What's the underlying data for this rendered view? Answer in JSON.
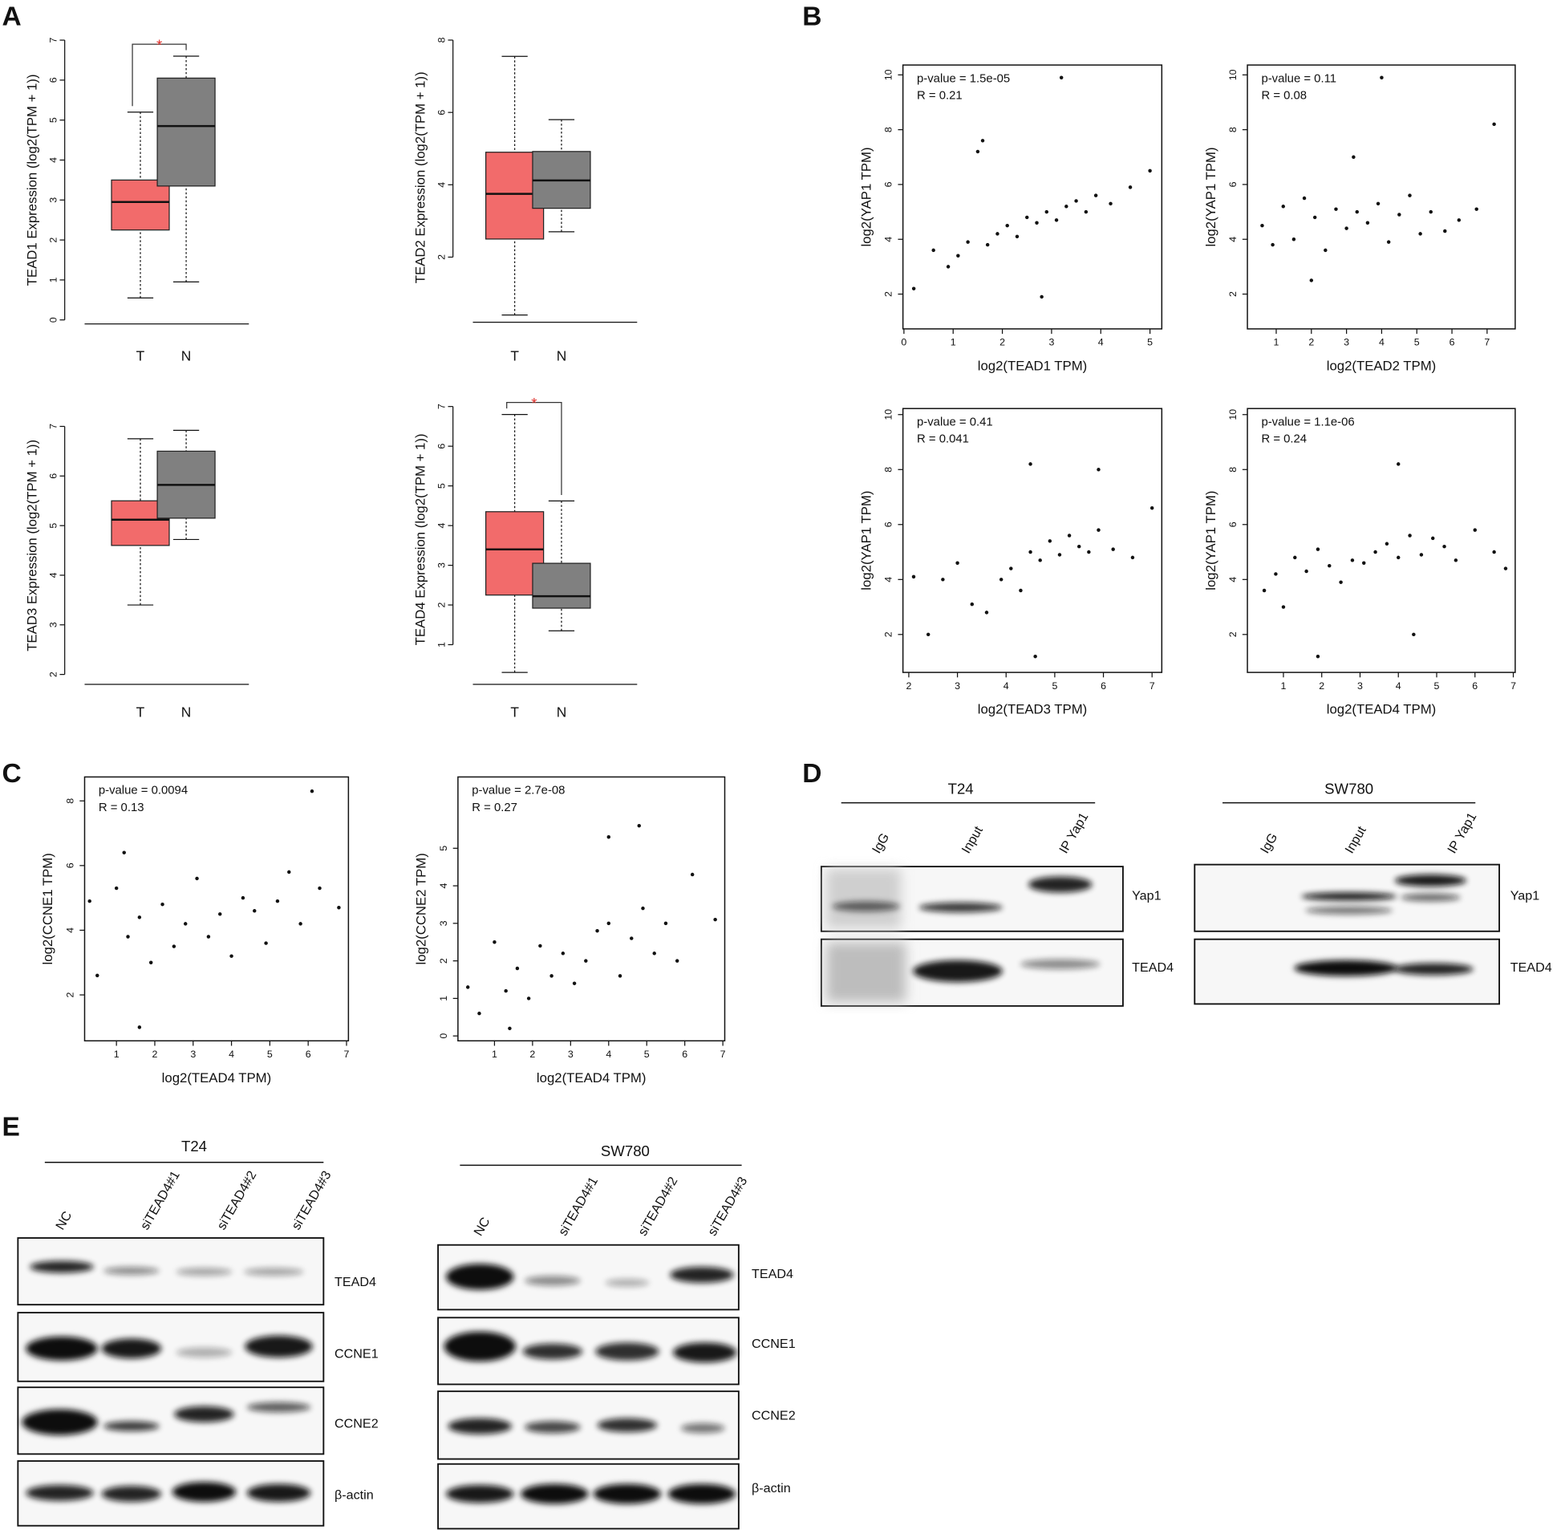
{
  "panel_labels": [
    "A",
    "B",
    "C",
    "D",
    "E"
  ],
  "chart_data": [
    {
      "type": "box",
      "y_label": "TEAD1 Expression (log2(TPM + 1))",
      "categories": [
        "T",
        "N"
      ],
      "colors": [
        "#f26b6b",
        "#808080"
      ],
      "stats": [
        {
          "min": 0.55,
          "q1": 2.25,
          "median": 2.95,
          "q3": 3.5,
          "max": 5.2
        },
        {
          "min": 0.95,
          "q1": 3.35,
          "median": 4.85,
          "q3": 6.05,
          "max": 6.6
        }
      ],
      "ylim": [
        -0.1,
        7.1
      ],
      "yticks": [
        0,
        1,
        2,
        3,
        4,
        5,
        6,
        7
      ],
      "significance": "*"
    },
    {
      "type": "box",
      "y_label": "TEAD2 Expression (log2(TPM + 1))",
      "categories": [
        "T",
        "N"
      ],
      "colors": [
        "#f26b6b",
        "#808080"
      ],
      "stats": [
        {
          "min": 0.4,
          "q1": 2.5,
          "median": 3.75,
          "q3": 4.9,
          "max": 7.55
        },
        {
          "min": 2.7,
          "q1": 3.35,
          "median": 4.12,
          "q3": 4.92,
          "max": 5.8
        }
      ],
      "ylim": [
        0.2,
        8.2
      ],
      "yticks": [
        2,
        4,
        6,
        8
      ]
    },
    {
      "type": "box",
      "y_label": "TEAD3 Expression (log2(TPM + 1))",
      "categories": [
        "T",
        "N"
      ],
      "colors": [
        "#f26b6b",
        "#808080"
      ],
      "stats": [
        {
          "min": 3.4,
          "q1": 4.6,
          "median": 5.12,
          "q3": 5.5,
          "max": 6.75
        },
        {
          "min": 4.72,
          "q1": 5.15,
          "median": 5.82,
          "q3": 6.5,
          "max": 6.92
        }
      ],
      "ylim": [
        1.8,
        7.4
      ],
      "yticks": [
        2,
        3,
        4,
        5,
        6,
        7
      ]
    },
    {
      "type": "box",
      "y_label": "TEAD4 Expression (log2(TPM + 1))",
      "categories": [
        "T",
        "N"
      ],
      "colors": [
        "#f26b6b",
        "#808080"
      ],
      "stats": [
        {
          "min": 0.3,
          "q1": 2.25,
          "median": 3.4,
          "q3": 4.35,
          "max": 6.8
        },
        {
          "min": 1.35,
          "q1": 1.92,
          "median": 2.22,
          "q3": 3.05,
          "max": 4.62
        }
      ],
      "ylim": [
        0,
        7.3
      ],
      "yticks": [
        1,
        2,
        3,
        4,
        5,
        6,
        7
      ],
      "significance": "*"
    },
    {
      "type": "scatter",
      "annotations": [
        "p-value = 1.5e-05",
        "R = 0.21"
      ],
      "x_label": "log2(TEAD1 TPM)",
      "y_label": "log2(YAP1 TPM)",
      "xlim": [
        -0.02,
        5.24
      ],
      "ylim": [
        0.73,
        10.36
      ],
      "xticks": [
        0,
        1,
        2,
        3,
        4,
        5
      ],
      "yticks": [
        2,
        4,
        6,
        8,
        10
      ],
      "x": [
        0.2,
        0.6,
        0.9,
        1.1,
        1.3,
        1.5,
        1.7,
        1.9,
        2.1,
        2.3,
        2.5,
        2.7,
        2.9,
        3.1,
        3.3,
        3.5,
        3.7,
        3.9,
        4.2,
        4.6,
        5.0,
        3.2,
        1.6,
        2.8
      ],
      "y": [
        2.2,
        3.6,
        3.0,
        3.4,
        3.9,
        7.2,
        3.8,
        4.2,
        4.5,
        4.1,
        4.8,
        4.6,
        5.0,
        4.7,
        5.2,
        5.4,
        5.0,
        5.6,
        5.3,
        5.9,
        6.5,
        9.9,
        7.6,
        1.9
      ]
    },
    {
      "type": "scatter",
      "annotations": [
        "p-value = 0.11",
        "R = 0.08"
      ],
      "x_label": "log2(TEAD2 TPM)",
      "y_label": "log2(YAP1 TPM)",
      "xlim": [
        0.18,
        7.8
      ],
      "ylim": [
        0.73,
        10.36
      ],
      "xticks": [
        1,
        2,
        3,
        4,
        5,
        6,
        7
      ],
      "yticks": [
        2,
        4,
        6,
        8,
        10
      ],
      "x": [
        0.6,
        0.9,
        1.2,
        1.5,
        1.8,
        2.1,
        2.4,
        2.7,
        3.0,
        3.3,
        3.6,
        3.9,
        4.2,
        4.5,
        4.8,
        5.1,
        5.4,
        5.8,
        6.2,
        6.7,
        7.2,
        4.0,
        3.2,
        2.0
      ],
      "y": [
        4.5,
        3.8,
        5.2,
        4.0,
        5.5,
        4.8,
        3.6,
        5.1,
        4.4,
        5.0,
        4.6,
        5.3,
        3.9,
        4.9,
        5.6,
        4.2,
        5.0,
        4.3,
        4.7,
        5.1,
        8.2,
        9.9,
        7.0,
        2.5
      ]
    },
    {
      "type": "scatter",
      "annotations": [
        "p-value = 0.41",
        "R = 0.041"
      ],
      "x_label": "log2(TEAD3 TPM)",
      "y_label": "log2(YAP1 TPM)",
      "xlim": [
        1.88,
        7.2
      ],
      "ylim": [
        0.62,
        10.22
      ],
      "xticks": [
        2,
        3,
        4,
        5,
        6,
        7
      ],
      "yticks": [
        2,
        4,
        6,
        8,
        10
      ],
      "x": [
        2.1,
        2.4,
        2.7,
        3.0,
        3.3,
        3.6,
        3.9,
        4.1,
        4.3,
        4.5,
        4.7,
        4.9,
        5.1,
        5.3,
        5.5,
        5.7,
        5.9,
        6.2,
        6.6,
        7.0,
        4.5,
        5.9,
        4.6
      ],
      "y": [
        4.1,
        2.0,
        4.0,
        4.6,
        3.1,
        2.8,
        4.0,
        4.4,
        3.6,
        5.0,
        4.7,
        5.4,
        4.9,
        5.6,
        5.2,
        5.0,
        5.8,
        5.1,
        4.8,
        6.6,
        8.2,
        8.0,
        1.2
      ]
    },
    {
      "type": "scatter",
      "annotations": [
        "p-value = 1.1e-06",
        "R = 0.24"
      ],
      "x_label": "log2(TEAD4 TPM)",
      "y_label": "log2(YAP1 TPM)",
      "xlim": [
        0.06,
        7.05
      ],
      "ylim": [
        0.62,
        10.22
      ],
      "xticks": [
        1,
        2,
        3,
        4,
        5,
        6,
        7
      ],
      "yticks": [
        2,
        4,
        6,
        8,
        10
      ],
      "x": [
        0.5,
        0.8,
        1.0,
        1.3,
        1.6,
        1.9,
        2.2,
        2.5,
        2.8,
        3.1,
        3.4,
        3.7,
        4.0,
        4.3,
        4.6,
        4.9,
        5.2,
        5.5,
        6.0,
        6.5,
        6.8,
        4.0,
        4.4,
        1.9
      ],
      "y": [
        3.6,
        4.2,
        3.0,
        4.8,
        4.3,
        5.1,
        4.5,
        3.9,
        4.7,
        4.6,
        5.0,
        5.3,
        4.8,
        5.6,
        4.9,
        5.5,
        5.2,
        4.7,
        5.8,
        5.0,
        4.4,
        8.2,
        2.0,
        1.2
      ]
    },
    {
      "type": "scatter",
      "annotations": [
        "p-value = 0.0094",
        "R = 0.13"
      ],
      "x_label": "log2(TEAD4 TPM)",
      "y_label": "log2(CCNE1 TPM)",
      "xlim": [
        0.17,
        7.05
      ],
      "ylim": [
        0.58,
        8.74
      ],
      "xticks": [
        1,
        2,
        3,
        4,
        5,
        6,
        7
      ],
      "yticks": [
        2,
        4,
        6,
        8
      ],
      "x": [
        0.3,
        0.5,
        1.0,
        1.3,
        1.6,
        1.9,
        2.2,
        2.5,
        2.8,
        3.1,
        3.4,
        3.7,
        4.0,
        4.3,
        4.6,
        4.9,
        5.2,
        5.5,
        5.8,
        6.1,
        6.3,
        6.8,
        1.2,
        1.6
      ],
      "y": [
        4.9,
        2.6,
        5.3,
        3.8,
        4.4,
        3.0,
        4.8,
        3.5,
        4.2,
        5.6,
        3.8,
        4.5,
        3.2,
        5.0,
        4.6,
        3.6,
        4.9,
        5.8,
        4.2,
        8.3,
        5.3,
        4.7,
        6.4,
        1.0
      ]
    },
    {
      "type": "scatter",
      "annotations": [
        "p-value = 2.7e-08",
        "R = 0.27"
      ],
      "x_label": "log2(TEAD4 TPM)",
      "y_label": "log2(CCNE2 TPM)",
      "xlim": [
        0.04,
        7.05
      ],
      "ylim": [
        -0.13,
        6.9
      ],
      "xticks": [
        1,
        2,
        3,
        4,
        5,
        6,
        7
      ],
      "yticks": [
        0,
        1,
        2,
        3,
        4,
        5
      ],
      "x": [
        0.3,
        0.6,
        1.0,
        1.3,
        1.6,
        1.9,
        2.2,
        2.5,
        2.8,
        3.1,
        3.4,
        3.7,
        4.0,
        4.3,
        4.6,
        4.9,
        5.2,
        5.5,
        5.8,
        6.2,
        6.8,
        4.0,
        4.8,
        1.4
      ],
      "y": [
        1.3,
        0.6,
        2.5,
        1.2,
        1.8,
        1.0,
        2.4,
        1.6,
        2.2,
        1.4,
        2.0,
        2.8,
        3.0,
        1.6,
        2.6,
        3.4,
        2.2,
        3.0,
        2.0,
        4.3,
        3.1,
        5.3,
        5.6,
        0.2
      ]
    }
  ],
  "blots": {
    "D": [
      {
        "cell_line": "T24",
        "lanes": [
          "IgG",
          "Input",
          "IP Yap1"
        ],
        "proteins": [
          "Yap1",
          "TEAD4"
        ]
      },
      {
        "cell_line": "SW780",
        "lanes": [
          "IgG",
          "Input",
          "IP Yap1"
        ],
        "proteins": [
          "Yap1",
          "TEAD4"
        ]
      }
    ],
    "E": [
      {
        "cell_line": "T24",
        "lanes": [
          "NC",
          "siTEAD4#1",
          "siTEAD4#2",
          "siTEAD4#3"
        ],
        "proteins": [
          "TEAD4",
          "CCNE1",
          "CCNE2",
          "β-actin"
        ]
      },
      {
        "cell_line": "SW780",
        "lanes": [
          "NC",
          "siTEAD4#1",
          "siTEAD4#2",
          "siTEAD4#3"
        ],
        "proteins": [
          "TEAD4",
          "CCNE1",
          "CCNE2",
          "β-actin"
        ]
      }
    ]
  }
}
